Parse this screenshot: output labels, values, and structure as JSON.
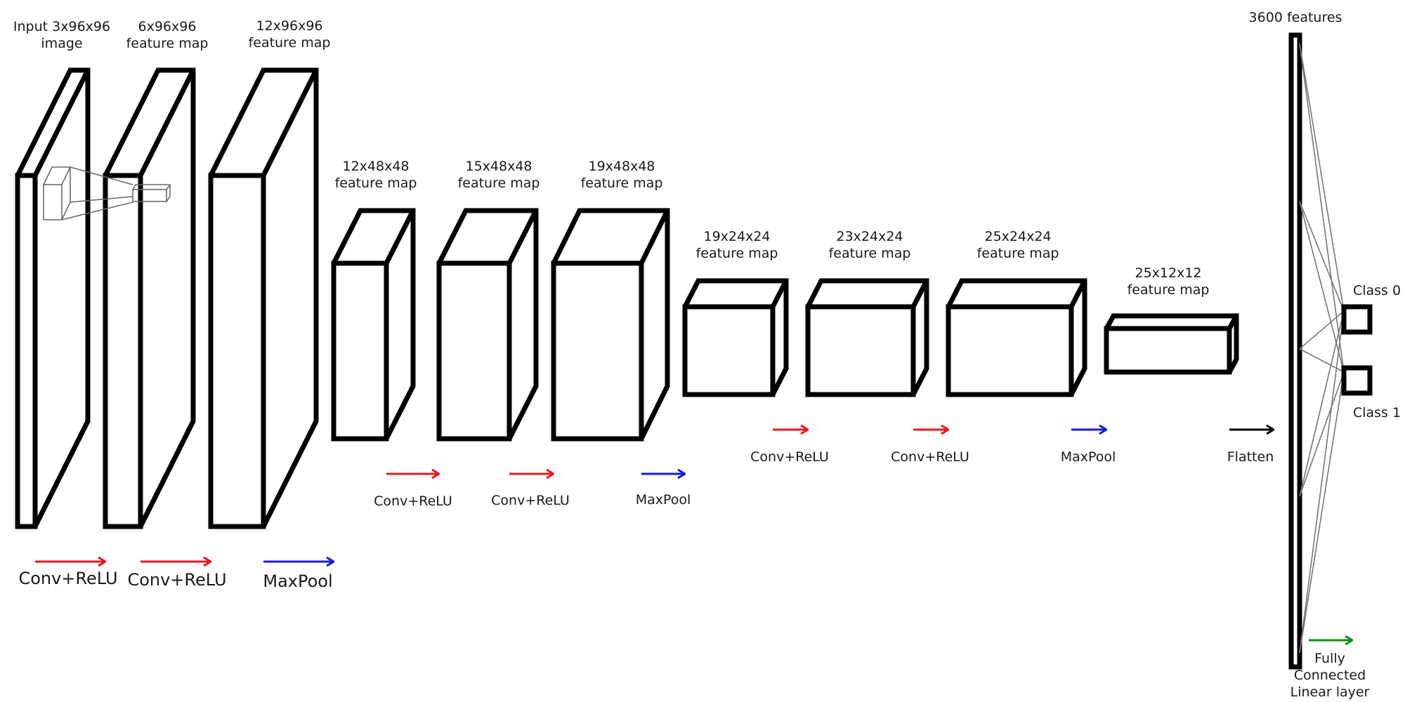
{
  "layers": [
    {
      "id": "input",
      "l1": "Input 3x96x96",
      "l2": "image"
    },
    {
      "id": "conv1",
      "l1": "6x96x96",
      "l2": "feature map"
    },
    {
      "id": "conv2",
      "l1": "12x96x96",
      "l2": "feature map"
    },
    {
      "id": "pool1",
      "l1": "12x48x48",
      "l2": "feature map"
    },
    {
      "id": "conv3",
      "l1": "15x48x48",
      "l2": "feature map"
    },
    {
      "id": "conv4",
      "l1": "19x48x48",
      "l2": "feature map"
    },
    {
      "id": "pool2",
      "l1": "19x24x24",
      "l2": "feature map"
    },
    {
      "id": "conv5",
      "l1": "23x24x24",
      "l2": "feature map"
    },
    {
      "id": "conv6",
      "l1": "25x24x24",
      "l2": "feature map"
    },
    {
      "id": "pool3",
      "l1": "25x12x12",
      "l2": "feature map"
    },
    {
      "id": "flat",
      "l1": "3600 features",
      "l2": ""
    }
  ],
  "operations": [
    {
      "label": "Conv+ReLU",
      "color": "#e8191d"
    },
    {
      "label": "Conv+ReLU",
      "color": "#e8191d"
    },
    {
      "label": "MaxPool",
      "color": "#1619e0"
    },
    {
      "label": "Conv+ReLU",
      "color": "#e8191d"
    },
    {
      "label": "Conv+ReLU",
      "color": "#e8191d"
    },
    {
      "label": "MaxPool",
      "color": "#1619e0"
    },
    {
      "label": "Conv+ReLU",
      "color": "#e8191d"
    },
    {
      "label": "Conv+ReLU",
      "color": "#e8191d"
    },
    {
      "label": "MaxPool",
      "color": "#1619e0"
    },
    {
      "label": "Flatten",
      "color": "#000000"
    },
    {
      "label": "Fully",
      "label2": "Connected",
      "label3": "Linear layer",
      "color": "#0f8f14"
    }
  ],
  "classes": [
    {
      "label": "Class 0"
    },
    {
      "label": "Class 1"
    }
  ]
}
